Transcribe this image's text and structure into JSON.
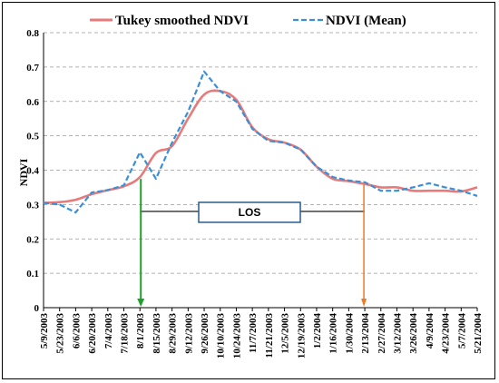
{
  "chart_data": {
    "type": "line",
    "x": [
      "5/9/2003",
      "5/23/2003",
      "6/6/2003",
      "6/20/2003",
      "7/4/2003",
      "7/18/2003",
      "8/1/2003",
      "8/15/2003",
      "8/29/2003",
      "9/12/2003",
      "9/26/2003",
      "10/10/2003",
      "10/24/2003",
      "11/7/2003",
      "11/21/2003",
      "12/5/2003",
      "12/19/2003",
      "1/2/2004",
      "1/16/2004",
      "1/30/2004",
      "2/13/2004",
      "2/27/2004",
      "3/12/2004",
      "3/26/2004",
      "4/9/2004",
      "4/23/2004",
      "5/7/2004",
      "5/21/2004"
    ],
    "series": [
      {
        "name": "Tukey smoothed NDVI",
        "color": "#e87a7a",
        "style": "solid",
        "values": [
          0.305,
          0.307,
          0.314,
          0.33,
          0.342,
          0.353,
          0.38,
          0.45,
          0.47,
          0.55,
          0.62,
          0.63,
          0.605,
          0.525,
          0.49,
          0.48,
          0.46,
          0.41,
          0.375,
          0.368,
          0.36,
          0.35,
          0.35,
          0.34,
          0.34,
          0.34,
          0.338,
          0.35
        ]
      },
      {
        "name": "NDVI (Mean)",
        "color": "#3b8fd6",
        "style": "dashed",
        "values": [
          0.305,
          0.3,
          0.277,
          0.335,
          0.342,
          0.356,
          0.452,
          0.375,
          0.48,
          0.57,
          0.687,
          0.63,
          0.6,
          0.52,
          0.485,
          0.48,
          0.46,
          0.41,
          0.38,
          0.37,
          0.365,
          0.34,
          0.34,
          0.35,
          0.362,
          0.35,
          0.34,
          0.325
        ]
      }
    ],
    "ylabel": "NDVI",
    "ylim": [
      0,
      0.8
    ],
    "yticks": [
      0,
      0.1,
      0.2,
      0.3,
      0.4,
      0.5,
      0.6,
      0.7,
      0.8
    ],
    "grid": "horizontal-dashed",
    "legend": "top",
    "annotation": {
      "label": "LOS",
      "start_x": "8/1/2003",
      "end_x": "2/13/2004",
      "level": 0.28,
      "start_arrow_color": "#1fa02a",
      "end_arrow_color": "#ef7a24"
    }
  }
}
